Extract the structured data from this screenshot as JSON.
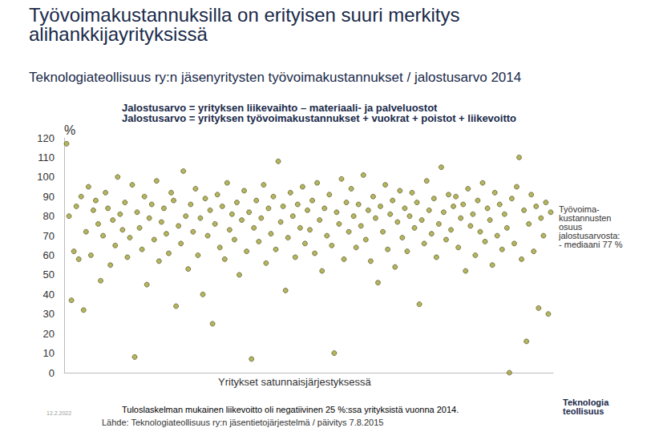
{
  "chart_data": {
    "type": "scatter",
    "title": [
      "Työvoimakustannuksilla on erityisen suuri merkitys",
      "alihankkijayrityksissä"
    ],
    "subtitle": "Teknologiateollisuus ry:n jäsenyritysten työvoimakustannukset / jalostusarvo 2014",
    "definitions": [
      "Jalostusarvo = yrityksen liikevaihto – materiaali- ja palveluostot",
      "Jalostusarvo = yrityksen työvoimakustannukset + vuokrat + poistot + liikevoitto"
    ],
    "y_unit": "%",
    "x_label": "Yritykset satunnaisjärjestyksessä",
    "side_note": [
      "Työvoima-",
      "kustannusten",
      "osuus",
      "jalostusarvosta:",
      "- mediaani 77 %"
    ],
    "note": "Tuloslaskelman mukainen liikevoitto oli negatiivinen 25 %:ssa yrityksistä vuonna 2014.",
    "source": "Lähde: Teknologiateollisuus ry:n jäsentietojärjestelmä / päivitys 7.8.2015",
    "date": "12.2.2022",
    "logo": [
      "Teknologia",
      "teollisuus"
    ],
    "x": [
      1,
      2,
      3,
      4,
      5,
      6,
      7,
      8,
      9,
      10,
      11,
      12,
      13,
      14,
      15,
      16,
      17,
      18,
      19,
      20,
      21,
      22,
      23,
      24,
      25,
      26,
      27,
      28,
      29,
      30,
      31,
      32,
      33,
      34,
      35,
      36,
      37,
      38,
      39,
      40,
      41,
      42,
      43,
      44,
      45,
      46,
      47,
      48,
      49,
      50,
      51,
      52,
      53,
      54,
      55,
      56,
      57,
      58,
      59,
      60,
      61,
      62,
      63,
      64,
      65,
      66,
      67,
      68,
      69,
      70,
      71,
      72,
      73,
      74,
      75,
      76,
      77,
      78,
      79,
      80,
      81,
      82,
      83,
      84,
      85,
      86,
      87,
      88,
      89,
      90,
      91,
      92,
      93,
      94,
      95,
      96,
      97,
      98,
      99,
      100,
      101,
      102,
      103,
      104,
      105,
      106,
      107,
      108,
      109,
      110,
      111,
      112,
      113,
      114,
      115,
      116,
      117,
      118,
      119,
      120,
      121,
      122,
      123,
      124,
      125,
      126,
      127,
      128,
      129,
      130,
      131,
      132,
      133,
      134,
      135,
      136,
      137,
      138,
      139,
      140,
      141,
      142,
      143,
      144,
      145,
      146,
      147,
      148,
      149,
      150,
      151,
      152,
      153,
      154,
      155,
      156,
      157,
      158,
      159,
      160,
      161,
      162,
      163,
      164,
      165,
      166,
      167,
      168,
      169,
      170,
      171,
      172,
      173,
      174,
      175,
      176,
      177,
      178,
      179,
      180,
      181,
      182,
      183,
      184,
      185,
      186,
      187,
      188,
      189,
      190,
      191,
      192,
      193,
      194,
      195,
      196,
      197,
      198,
      199,
      200
    ],
    "values": [
      117,
      80,
      37,
      62,
      85,
      58,
      90,
      32,
      72,
      95,
      60,
      83,
      88,
      76,
      47,
      70,
      92,
      84,
      55,
      78,
      65,
      100,
      81,
      73,
      87,
      59,
      69,
      96,
      8,
      82,
      74,
      63,
      90,
      45,
      79,
      86,
      68,
      98,
      57,
      77,
      84,
      71,
      61,
      92,
      88,
      34,
      75,
      66,
      103,
      80,
      53,
      86,
      72,
      94,
      60,
      79,
      40,
      89,
      70,
      83,
      25,
      76,
      91,
      64,
      85,
      58,
      97,
      73,
      81,
      68,
      87,
      50,
      78,
      93,
      62,
      82,
      7,
      74,
      88,
      67,
      79,
      96,
      56,
      84,
      71,
      90,
      63,
      108,
      77,
      85,
      42,
      69,
      92,
      80,
      59,
      86,
      74,
      95,
      66,
      83,
      73,
      88,
      61,
      97,
      78,
      52,
      84,
      70,
      91,
      65,
      10,
      82,
      76,
      99,
      58,
      87,
      72,
      94,
      80,
      64,
      86,
      75,
      101,
      68,
      83,
      57,
      90,
      79,
      46,
      85,
      72,
      96,
      63,
      81,
      88,
      54,
      77,
      93,
      69,
      84,
      62,
      80,
      92,
      74,
      87,
      35,
      78,
      66,
      98,
      83,
      71,
      89,
      59,
      76,
      105,
      82,
      68,
      91,
      73,
      85,
      90,
      64,
      79,
      86,
      52,
      94,
      75,
      81,
      60,
      88,
      72,
      97,
      67,
      84,
      78,
      55,
      92,
      70,
      86,
      63,
      81,
      74,
      0,
      89,
      66,
      95,
      110,
      58,
      83,
      16,
      76,
      91,
      62,
      85,
      33,
      79,
      70,
      87,
      30,
      82
    ],
    "color": "#a3a23a",
    "marker": "circle",
    "xlim": [
      0,
      201
    ],
    "ylim": [
      0,
      120
    ],
    "yticks": [
      0,
      10,
      20,
      30,
      40,
      50,
      60,
      70,
      80,
      90,
      100,
      110,
      120
    ],
    "grid": false,
    "tick_labels": "y"
  }
}
